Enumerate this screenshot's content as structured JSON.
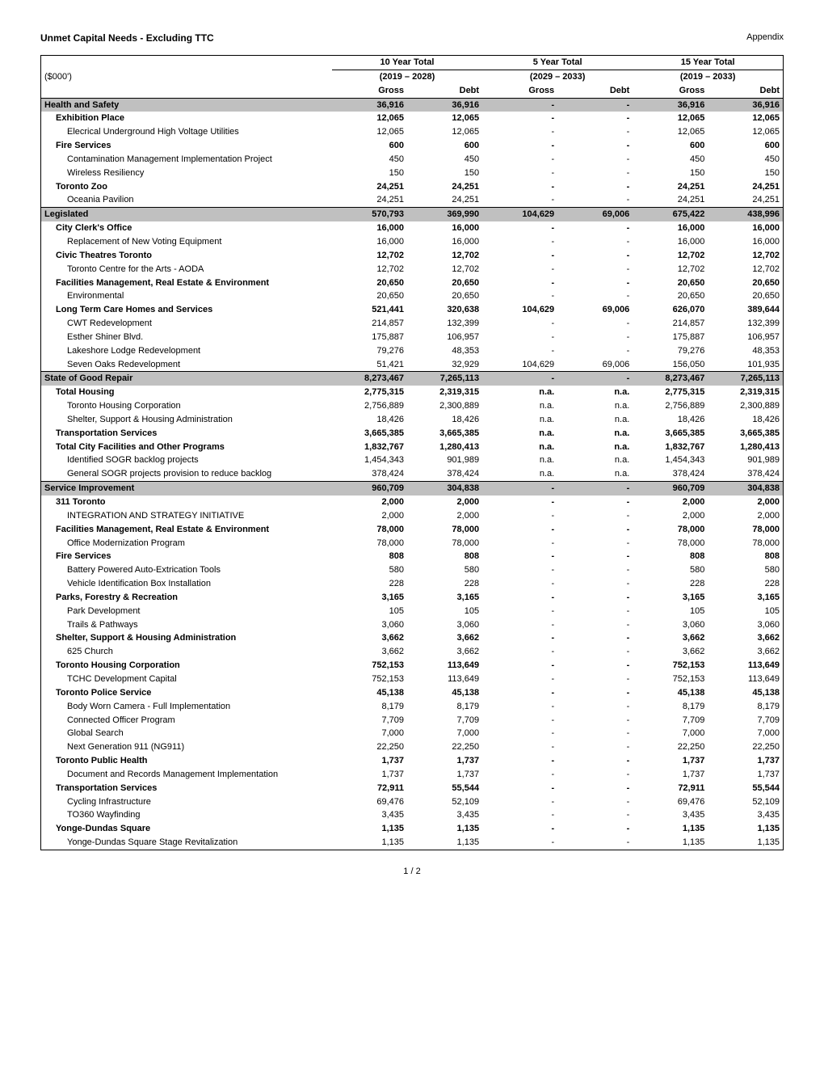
{
  "title": "Unmet Capital Needs - Excluding TTC",
  "appendix_label": "Appendix",
  "unit_label": "($000')",
  "page_number": "1 / 2",
  "styling": {
    "font_family": "Arial",
    "base_fontsize": 11,
    "title_fontsize": 12,
    "section_bg": "#c0c0c0",
    "border_color": "#000000",
    "background": "#ffffff",
    "text_color": "#000000"
  },
  "periods": [
    {
      "title": "10 Year Total",
      "range": "(2019 – 2028)"
    },
    {
      "title": "5 Year Total",
      "range": "(2029 – 2033)"
    },
    {
      "title": "15 Year Total",
      "range": "(2019 – 2033)"
    }
  ],
  "column_labels": {
    "gross": "Gross",
    "debt": "Debt"
  },
  "rows": [
    {
      "type": "section",
      "label": "Health and Safety",
      "v": [
        "36,916",
        "36,916",
        "-",
        "-",
        "36,916",
        "36,916"
      ]
    },
    {
      "type": "bold",
      "indent": 1,
      "label": "Exhibition Place",
      "v": [
        "12,065",
        "12,065",
        "-",
        "-",
        "12,065",
        "12,065"
      ]
    },
    {
      "type": "plain",
      "indent": 2,
      "label": "Elecrical Underground High Voltage Utilities",
      "v": [
        "12,065",
        "12,065",
        "-",
        "-",
        "12,065",
        "12,065"
      ]
    },
    {
      "type": "bold",
      "indent": 1,
      "label": "Fire Services",
      "v": [
        "600",
        "600",
        "-",
        "-",
        "600",
        "600"
      ]
    },
    {
      "type": "plain",
      "indent": 2,
      "label": "Contamination Management Implementation Project",
      "v": [
        "450",
        "450",
        "-",
        "-",
        "450",
        "450"
      ]
    },
    {
      "type": "plain",
      "indent": 2,
      "label": "Wireless Resiliency",
      "v": [
        "150",
        "150",
        "-",
        "-",
        "150",
        "150"
      ]
    },
    {
      "type": "bold",
      "indent": 1,
      "label": "Toronto Zoo",
      "v": [
        "24,251",
        "24,251",
        "-",
        "-",
        "24,251",
        "24,251"
      ]
    },
    {
      "type": "plain",
      "indent": 2,
      "label": "Oceania Pavilion",
      "v": [
        "24,251",
        "24,251",
        "-",
        "-",
        "24,251",
        "24,251"
      ],
      "bottom": true
    },
    {
      "type": "section",
      "label": "Legislated",
      "v": [
        "570,793",
        "369,990",
        "104,629",
        "69,006",
        "675,422",
        "438,996"
      ]
    },
    {
      "type": "bold",
      "indent": 1,
      "label": "City Clerk's Office",
      "v": [
        "16,000",
        "16,000",
        "-",
        "-",
        "16,000",
        "16,000"
      ]
    },
    {
      "type": "plain",
      "indent": 2,
      "label": "Replacement of New Voting Equipment",
      "v": [
        "16,000",
        "16,000",
        "-",
        "-",
        "16,000",
        "16,000"
      ]
    },
    {
      "type": "bold",
      "indent": 1,
      "label": "Civic Theatres Toronto",
      "v": [
        "12,702",
        "12,702",
        "-",
        "-",
        "12,702",
        "12,702"
      ]
    },
    {
      "type": "plain",
      "indent": 2,
      "label": "Toronto Centre for the Arts - AODA",
      "v": [
        "12,702",
        "12,702",
        "-",
        "-",
        "12,702",
        "12,702"
      ]
    },
    {
      "type": "bold",
      "indent": 1,
      "label": "Facilities Management, Real Estate & Environment",
      "v": [
        "20,650",
        "20,650",
        "-",
        "-",
        "20,650",
        "20,650"
      ]
    },
    {
      "type": "plain",
      "indent": 2,
      "label": "Environmental",
      "v": [
        "20,650",
        "20,650",
        "-",
        "-",
        "20,650",
        "20,650"
      ]
    },
    {
      "type": "bold",
      "indent": 1,
      "label": "Long Term Care Homes and Services",
      "v": [
        "521,441",
        "320,638",
        "104,629",
        "69,006",
        "626,070",
        "389,644"
      ]
    },
    {
      "type": "plain",
      "indent": 2,
      "label": "CWT Redevelopment",
      "v": [
        "214,857",
        "132,399",
        "-",
        "-",
        "214,857",
        "132,399"
      ]
    },
    {
      "type": "plain",
      "indent": 2,
      "label": "Esther Shiner Blvd.",
      "v": [
        "175,887",
        "106,957",
        "-",
        "-",
        "175,887",
        "106,957"
      ]
    },
    {
      "type": "plain",
      "indent": 2,
      "label": "Lakeshore Lodge Redevelopment",
      "v": [
        "79,276",
        "48,353",
        "-",
        "-",
        "79,276",
        "48,353"
      ]
    },
    {
      "type": "plain",
      "indent": 2,
      "label": "Seven Oaks Redevelopment",
      "v": [
        "51,421",
        "32,929",
        "104,629",
        "69,006",
        "156,050",
        "101,935"
      ],
      "bottom": true
    },
    {
      "type": "section",
      "label": "State of Good Repair",
      "v": [
        "8,273,467",
        "7,265,113",
        "-",
        "-",
        "8,273,467",
        "7,265,113"
      ]
    },
    {
      "type": "bold",
      "indent": 1,
      "label": "Total Housing",
      "v": [
        "2,775,315",
        "2,319,315",
        "n.a.",
        "n.a.",
        "2,775,315",
        "2,319,315"
      ]
    },
    {
      "type": "plain",
      "indent": 2,
      "label": "Toronto Housing Corporation",
      "v": [
        "2,756,889",
        "2,300,889",
        "n.a.",
        "n.a.",
        "2,756,889",
        "2,300,889"
      ]
    },
    {
      "type": "plain",
      "indent": 2,
      "label": "Shelter, Support & Housing Administration",
      "v": [
        "18,426",
        "18,426",
        "n.a.",
        "n.a.",
        "18,426",
        "18,426"
      ]
    },
    {
      "type": "bold",
      "indent": 1,
      "label": "Transportation Services",
      "v": [
        "3,665,385",
        "3,665,385",
        "n.a.",
        "n.a.",
        "3,665,385",
        "3,665,385"
      ]
    },
    {
      "type": "bold",
      "indent": 1,
      "label": "Total City Facilities and Other Programs",
      "v": [
        "1,832,767",
        "1,280,413",
        "n.a.",
        "n.a.",
        "1,832,767",
        "1,280,413"
      ]
    },
    {
      "type": "plain",
      "indent": 2,
      "label": "Identified SOGR backlog projects",
      "v": [
        "1,454,343",
        "901,989",
        "n.a.",
        "n.a.",
        "1,454,343",
        "901,989"
      ]
    },
    {
      "type": "plain",
      "indent": 2,
      "label": "General SOGR projects provision to reduce backlog",
      "v": [
        "378,424",
        "378,424",
        "n.a.",
        "n.a.",
        "378,424",
        "378,424"
      ],
      "bottom": true
    },
    {
      "type": "section",
      "label": "Service Improvement",
      "v": [
        "960,709",
        "304,838",
        "-",
        "-",
        "960,709",
        "304,838"
      ]
    },
    {
      "type": "bold",
      "indent": 1,
      "label": "311 Toronto",
      "v": [
        "2,000",
        "2,000",
        "-",
        "-",
        "2,000",
        "2,000"
      ]
    },
    {
      "type": "plain",
      "indent": 2,
      "label": "INTEGRATION AND STRATEGY INITIATIVE",
      "v": [
        "2,000",
        "2,000",
        "-",
        "-",
        "2,000",
        "2,000"
      ]
    },
    {
      "type": "bold",
      "indent": 1,
      "label": "Facilities Management, Real Estate & Environment",
      "v": [
        "78,000",
        "78,000",
        "-",
        "-",
        "78,000",
        "78,000"
      ]
    },
    {
      "type": "plain",
      "indent": 2,
      "label": "Office Modernization Program",
      "v": [
        "78,000",
        "78,000",
        "-",
        "-",
        "78,000",
        "78,000"
      ]
    },
    {
      "type": "bold",
      "indent": 1,
      "label": "Fire Services",
      "v": [
        "808",
        "808",
        "-",
        "-",
        "808",
        "808"
      ]
    },
    {
      "type": "plain",
      "indent": 2,
      "label": "Battery Powered Auto-Extrication Tools",
      "v": [
        "580",
        "580",
        "-",
        "-",
        "580",
        "580"
      ]
    },
    {
      "type": "plain",
      "indent": 2,
      "label": "Vehicle Identification Box Installation",
      "v": [
        "228",
        "228",
        "-",
        "-",
        "228",
        "228"
      ]
    },
    {
      "type": "bold",
      "indent": 1,
      "label": "Parks, Forestry & Recreation",
      "v": [
        "3,165",
        "3,165",
        "-",
        "-",
        "3,165",
        "3,165"
      ]
    },
    {
      "type": "plain",
      "indent": 2,
      "label": "Park Development",
      "v": [
        "105",
        "105",
        "-",
        "-",
        "105",
        "105"
      ]
    },
    {
      "type": "plain",
      "indent": 2,
      "label": "Trails & Pathways",
      "v": [
        "3,060",
        "3,060",
        "-",
        "-",
        "3,060",
        "3,060"
      ]
    },
    {
      "type": "bold",
      "indent": 1,
      "label": "Shelter, Support & Housing Administration",
      "v": [
        "3,662",
        "3,662",
        "-",
        "-",
        "3,662",
        "3,662"
      ]
    },
    {
      "type": "plain",
      "indent": 2,
      "label": "625 Church",
      "v": [
        "3,662",
        "3,662",
        "-",
        "-",
        "3,662",
        "3,662"
      ]
    },
    {
      "type": "bold",
      "indent": 1,
      "label": "Toronto Housing Corporation",
      "v": [
        "752,153",
        "113,649",
        "-",
        "-",
        "752,153",
        "113,649"
      ]
    },
    {
      "type": "plain",
      "indent": 2,
      "label": "TCHC Development Capital",
      "v": [
        "752,153",
        "113,649",
        "-",
        "-",
        "752,153",
        "113,649"
      ]
    },
    {
      "type": "bold",
      "indent": 1,
      "label": "Toronto Police Service",
      "v": [
        "45,138",
        "45,138",
        "-",
        "-",
        "45,138",
        "45,138"
      ]
    },
    {
      "type": "plain",
      "indent": 2,
      "label": "Body Worn Camera - Full Implementation",
      "v": [
        "8,179",
        "8,179",
        "-",
        "-",
        "8,179",
        "8,179"
      ]
    },
    {
      "type": "plain",
      "indent": 2,
      "label": "Connected Officer Program",
      "v": [
        "7,709",
        "7,709",
        "-",
        "-",
        "7,709",
        "7,709"
      ]
    },
    {
      "type": "plain",
      "indent": 2,
      "label": "Global Search",
      "v": [
        "7,000",
        "7,000",
        "-",
        "-",
        "7,000",
        "7,000"
      ]
    },
    {
      "type": "plain",
      "indent": 2,
      "label": "Next Generation 911 (NG911)",
      "v": [
        "22,250",
        "22,250",
        "-",
        "-",
        "22,250",
        "22,250"
      ]
    },
    {
      "type": "bold",
      "indent": 1,
      "label": "Toronto Public Health",
      "v": [
        "1,737",
        "1,737",
        "-",
        "-",
        "1,737",
        "1,737"
      ]
    },
    {
      "type": "plain",
      "indent": 2,
      "label": "Document and Records Management Implementation",
      "v": [
        "1,737",
        "1,737",
        "-",
        "-",
        "1,737",
        "1,737"
      ]
    },
    {
      "type": "bold",
      "indent": 1,
      "label": "Transportation Services",
      "v": [
        "72,911",
        "55,544",
        "-",
        "-",
        "72,911",
        "55,544"
      ]
    },
    {
      "type": "plain",
      "indent": 2,
      "label": "Cycling Infrastructure",
      "v": [
        "69,476",
        "52,109",
        "-",
        "-",
        "69,476",
        "52,109"
      ]
    },
    {
      "type": "plain",
      "indent": 2,
      "label": "TO360 Wayfinding",
      "v": [
        "3,435",
        "3,435",
        "-",
        "-",
        "3,435",
        "3,435"
      ]
    },
    {
      "type": "bold",
      "indent": 1,
      "label": "Yonge-Dundas Square",
      "v": [
        "1,135",
        "1,135",
        "-",
        "-",
        "1,135",
        "1,135"
      ]
    },
    {
      "type": "plain",
      "indent": 2,
      "label": "Yonge-Dundas Square Stage Revitalization",
      "v": [
        "1,135",
        "1,135",
        "-",
        "-",
        "1,135",
        "1,135"
      ],
      "bottom": true
    }
  ]
}
